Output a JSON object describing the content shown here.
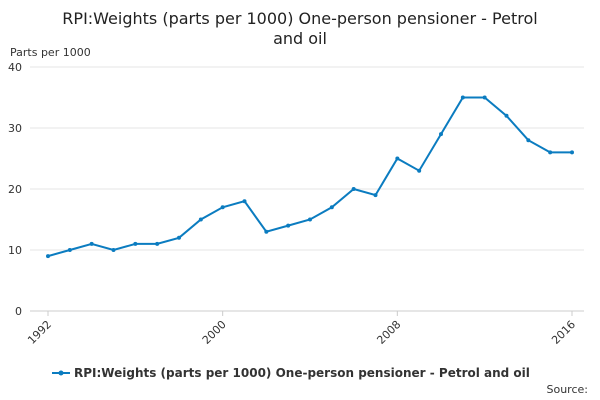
{
  "chart_data": {
    "type": "line",
    "title": [
      "RPI:Weights (parts per 1000) One-person pensioner - Petrol",
      "and oil"
    ],
    "y_label": "Parts per 1000",
    "source": "Source:",
    "x": [
      1992,
      1993,
      1994,
      1995,
      1996,
      1997,
      1998,
      1999,
      2000,
      2001,
      2002,
      2003,
      2004,
      2005,
      2006,
      2007,
      2008,
      2009,
      2010,
      2011,
      2012,
      2013,
      2014,
      2015,
      2016
    ],
    "series": [
      {
        "name": "RPI:Weights (parts per 1000) One-person pensioner - Petrol and oil",
        "color": "#0b7cc0",
        "values": [
          9,
          10,
          11,
          10,
          11,
          11,
          12,
          15,
          17,
          18,
          13,
          14,
          15,
          17,
          20,
          19,
          25,
          23,
          29,
          35,
          35,
          32,
          28,
          26,
          26
        ]
      }
    ],
    "xlim": [
      1992,
      2016
    ],
    "xticks": [
      1992,
      2000,
      2008,
      2016
    ],
    "ylim": [
      0,
      40
    ],
    "yticks": [
      0,
      10,
      20,
      30,
      40
    ],
    "grid": true
  }
}
